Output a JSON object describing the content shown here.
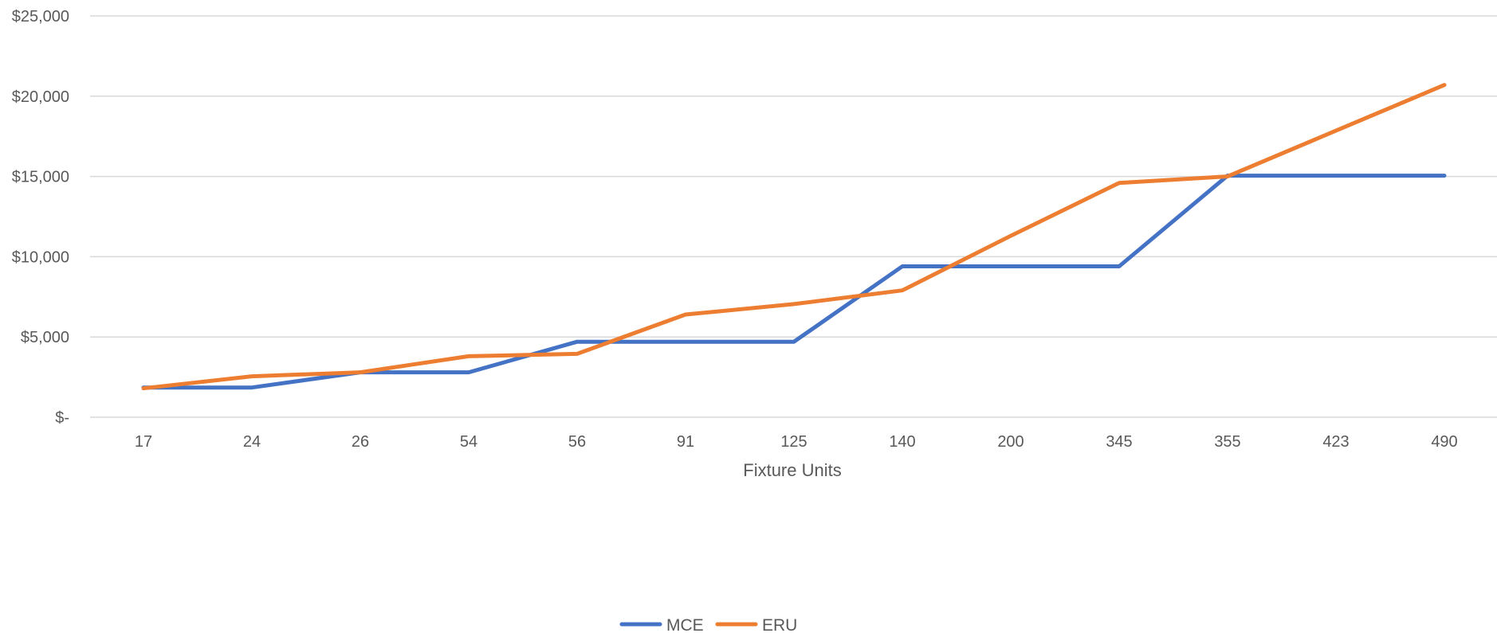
{
  "chart_data": {
    "type": "line",
    "title": "",
    "xlabel": "Fixture Units",
    "ylabel": "",
    "categories": [
      "17",
      "24",
      "26",
      "54",
      "56",
      "91",
      "125",
      "140",
      "200",
      "345",
      "355",
      "423",
      "490"
    ],
    "y_tick_labels": [
      "$-",
      "$5,000",
      "$10,000",
      "$15,000",
      "$20,000",
      "$25,000"
    ],
    "ylim": [
      0,
      25000
    ],
    "grid": true,
    "legend_position": "bottom",
    "series": [
      {
        "name": "MCE",
        "color": "#4472C4",
        "values": [
          1850,
          1850,
          2800,
          2800,
          4700,
          4700,
          4700,
          9400,
          9400,
          9400,
          15050,
          15050,
          15050
        ]
      },
      {
        "name": "ERU",
        "color": "#ED7D31",
        "values": [
          1800,
          2550,
          2800,
          3800,
          3950,
          6400,
          7050,
          7900,
          11300,
          14600,
          15000,
          17850,
          20700
        ]
      }
    ]
  }
}
